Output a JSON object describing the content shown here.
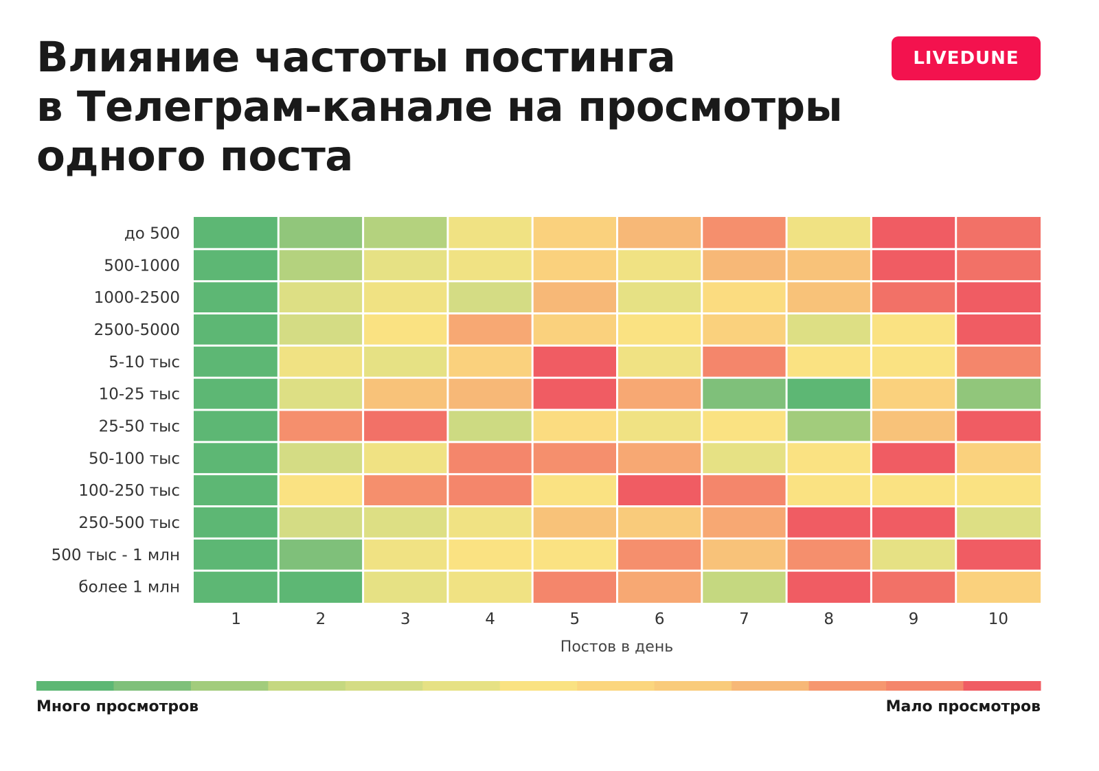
{
  "brand": {
    "logo_text": "LIVEDUNE",
    "color": "#f3124e"
  },
  "chart_data": {
    "type": "heatmap",
    "title": "Влияние частоты постинга\nв Телеграм-канале на просмотры\nодного поста",
    "xlabel": "Постов в день",
    "ylabel": "",
    "x_categories": [
      "1",
      "2",
      "3",
      "4",
      "5",
      "6",
      "7",
      "8",
      "9",
      "10"
    ],
    "y_categories": [
      "до 500",
      "500-1000",
      "1000-2500",
      "2500-5000",
      "5-10 тыс",
      "10-25 тыс",
      "25-50 тыс",
      "50-100 тыс",
      "100-250 тыс",
      "250-500 тыс",
      "500 тыс - 1 млн",
      "более 1 млн"
    ],
    "values": [
      [
        0,
        1.5,
        2.5,
        5.5,
        7.5,
        9,
        10.5,
        5.5,
        12,
        11.5
      ],
      [
        0,
        2.5,
        5,
        5.5,
        7.5,
        5.5,
        9,
        8.5,
        12,
        11.5
      ],
      [
        0,
        4.5,
        5.5,
        4,
        9,
        5,
        6.5,
        8.5,
        11.5,
        12
      ],
      [
        0,
        4,
        6,
        9.5,
        7.5,
        6,
        7.5,
        4.5,
        6,
        12
      ],
      [
        0,
        5.5,
        5,
        7.5,
        12,
        5.5,
        11,
        6,
        6,
        11
      ],
      [
        0,
        4.5,
        8.5,
        9,
        12,
        9.5,
        1,
        0,
        7.5,
        1.5
      ],
      [
        0,
        10.5,
        11.5,
        3.5,
        6.5,
        5.5,
        6,
        2,
        8.5,
        12
      ],
      [
        0,
        4,
        5.5,
        11,
        10.5,
        9.5,
        5,
        6,
        12,
        7.5
      ],
      [
        0,
        6,
        10.5,
        11,
        6,
        12,
        11,
        6,
        6,
        6
      ],
      [
        0,
        4,
        4.5,
        5.5,
        8.5,
        8,
        9.5,
        12,
        12,
        4.5
      ],
      [
        0,
        1,
        5.5,
        6,
        6,
        10.5,
        8.5,
        10.5,
        5,
        12
      ],
      [
        0,
        0,
        5,
        5.5,
        11,
        9.5,
        3,
        12,
        11.5,
        7.5
      ]
    ],
    "color_scale": [
      "#5db774",
      "#7fc07a",
      "#a2cc7c",
      "#c5d880",
      "#d4dc84",
      "#e6e184",
      "#fae282",
      "#fbd67e",
      "#f9cb7b",
      "#f7b877",
      "#f6976f",
      "#f4866b",
      "#f05c63"
    ],
    "legend": {
      "low_label": "Много просмотров",
      "high_label": "Мало просмотров",
      "placement": "bottom"
    }
  }
}
